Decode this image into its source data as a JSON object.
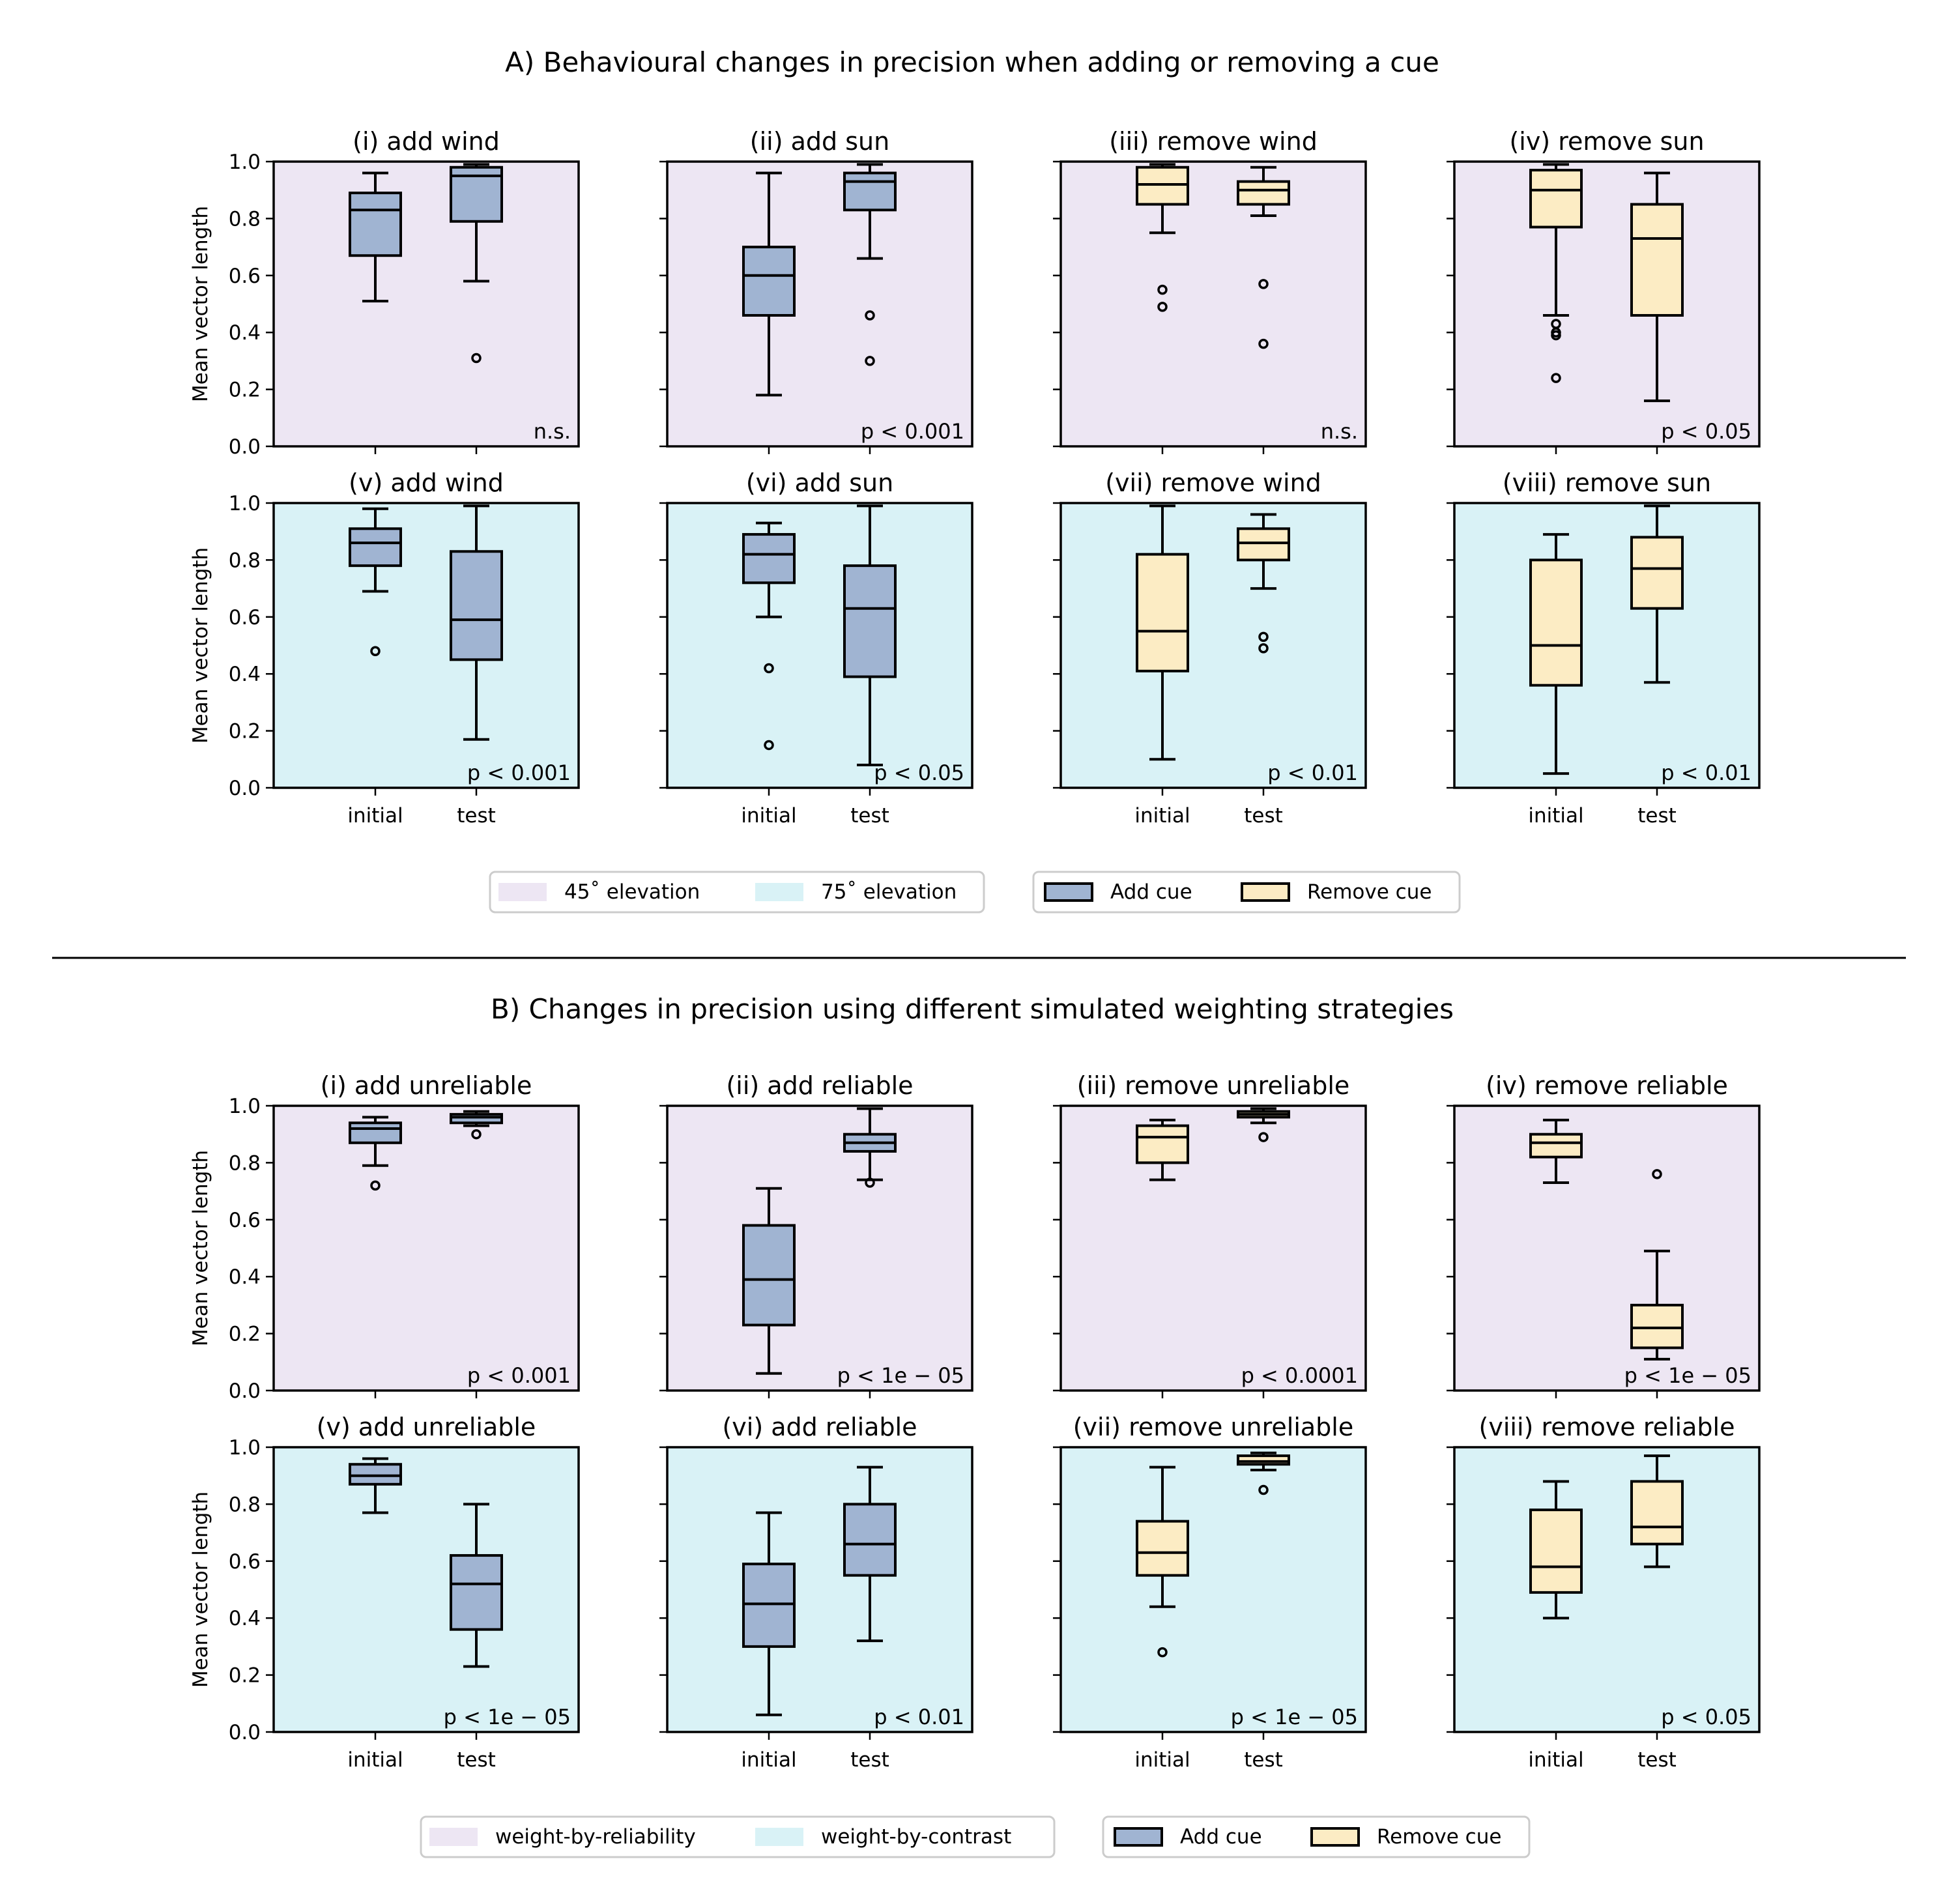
{
  "sections": [
    {
      "title": "A) Behavioural changes in precision when adding or removing a cue",
      "bg_legend": [
        {
          "label": "45˚ elevation",
          "color": "#ede6f3"
        },
        {
          "label": "75˚ elevation",
          "color": "#d9f2f6"
        }
      ],
      "cue_legend": [
        {
          "label": "Add cue",
          "color": "#a0b4d2"
        },
        {
          "label": "Remove cue",
          "color": "#fcecc4"
        }
      ]
    },
    {
      "title": "B) Changes in precision using different simulated weighting strategies",
      "bg_legend": [
        {
          "label": "weight-by-reliability",
          "color": "#ede6f3"
        },
        {
          "label": "weight-by-contrast",
          "color": "#d9f2f6"
        }
      ],
      "cue_legend": [
        {
          "label": "Add cue",
          "color": "#a0b4d2"
        },
        {
          "label": "Remove cue",
          "color": "#fcecc4"
        }
      ]
    }
  ],
  "colors": {
    "add_cue": "#a0b4d2",
    "remove_cue": "#fcecc4",
    "row_bg_top": "#ede6f3",
    "row_bg_bottom": "#d9f2f6"
  },
  "axis": {
    "ylabel": "Mean vector length",
    "yticks": [
      "0.0",
      "0.2",
      "0.4",
      "0.6",
      "0.8",
      "1.0"
    ],
    "xticks": [
      "initial",
      "test"
    ]
  },
  "chart_data": [
    {
      "type": "box",
      "section": "A",
      "title": "(i) add wind",
      "background": "45˚ elevation",
      "cue": "Add cue",
      "p": "n.s.",
      "ylim": [
        0,
        1
      ],
      "boxes": [
        {
          "x": "initial",
          "whislo": 0.51,
          "q1": 0.67,
          "med": 0.83,
          "q3": 0.89,
          "whishi": 0.96,
          "fliers": []
        },
        {
          "x": "test",
          "whislo": 0.58,
          "q1": 0.79,
          "med": 0.95,
          "q3": 0.98,
          "whishi": 0.99,
          "fliers": [
            0.31
          ]
        }
      ]
    },
    {
      "type": "box",
      "section": "A",
      "title": "(ii) add sun",
      "background": "45˚ elevation",
      "cue": "Add cue",
      "p": "p < 0.001",
      "ylim": [
        0,
        1
      ],
      "boxes": [
        {
          "x": "initial",
          "whislo": 0.18,
          "q1": 0.46,
          "med": 0.6,
          "q3": 0.7,
          "whishi": 0.96,
          "fliers": []
        },
        {
          "x": "test",
          "whislo": 0.66,
          "q1": 0.83,
          "med": 0.93,
          "q3": 0.96,
          "whishi": 0.99,
          "fliers": [
            0.46,
            0.3
          ]
        }
      ]
    },
    {
      "type": "box",
      "section": "A",
      "title": "(iii) remove wind",
      "background": "45˚ elevation",
      "cue": "Remove cue",
      "p": "n.s.",
      "ylim": [
        0,
        1
      ],
      "boxes": [
        {
          "x": "initial",
          "whislo": 0.75,
          "q1": 0.85,
          "med": 0.92,
          "q3": 0.98,
          "whishi": 0.99,
          "fliers": [
            0.55,
            0.49
          ]
        },
        {
          "x": "test",
          "whislo": 0.81,
          "q1": 0.85,
          "med": 0.9,
          "q3": 0.93,
          "whishi": 0.98,
          "fliers": [
            0.57,
            0.36
          ]
        }
      ]
    },
    {
      "type": "box",
      "section": "A",
      "title": "(iv) remove sun",
      "background": "45˚ elevation",
      "cue": "Remove cue",
      "p": "p < 0.05",
      "ylim": [
        0,
        1
      ],
      "boxes": [
        {
          "x": "initial",
          "whislo": 0.46,
          "q1": 0.77,
          "med": 0.9,
          "q3": 0.97,
          "whishi": 0.99,
          "fliers": [
            0.43,
            0.4,
            0.39,
            0.24
          ]
        },
        {
          "x": "test",
          "whislo": 0.16,
          "q1": 0.46,
          "med": 0.73,
          "q3": 0.85,
          "whishi": 0.96,
          "fliers": []
        }
      ]
    },
    {
      "type": "box",
      "section": "A",
      "title": "(v) add wind",
      "background": "75˚ elevation",
      "cue": "Add cue",
      "p": "p < 0.001",
      "ylim": [
        0,
        1
      ],
      "boxes": [
        {
          "x": "initial",
          "whislo": 0.69,
          "q1": 0.78,
          "med": 0.86,
          "q3": 0.91,
          "whishi": 0.98,
          "fliers": [
            0.48
          ]
        },
        {
          "x": "test",
          "whislo": 0.17,
          "q1": 0.45,
          "med": 0.59,
          "q3": 0.83,
          "whishi": 0.99,
          "fliers": []
        }
      ]
    },
    {
      "type": "box",
      "section": "A",
      "title": "(vi) add sun",
      "background": "75˚ elevation",
      "cue": "Add cue",
      "p": "p < 0.05",
      "ylim": [
        0,
        1
      ],
      "boxes": [
        {
          "x": "initial",
          "whislo": 0.6,
          "q1": 0.72,
          "med": 0.82,
          "q3": 0.89,
          "whishi": 0.93,
          "fliers": [
            0.42,
            0.15
          ]
        },
        {
          "x": "test",
          "whislo": 0.08,
          "q1": 0.39,
          "med": 0.63,
          "q3": 0.78,
          "whishi": 0.99,
          "fliers": []
        }
      ]
    },
    {
      "type": "box",
      "section": "A",
      "title": "(vii) remove wind",
      "background": "75˚ elevation",
      "cue": "Remove cue",
      "p": "p < 0.01",
      "ylim": [
        0,
        1
      ],
      "boxes": [
        {
          "x": "initial",
          "whislo": 0.1,
          "q1": 0.41,
          "med": 0.55,
          "q3": 0.82,
          "whishi": 0.99,
          "fliers": []
        },
        {
          "x": "test",
          "whislo": 0.7,
          "q1": 0.8,
          "med": 0.86,
          "q3": 0.91,
          "whishi": 0.96,
          "fliers": [
            0.53,
            0.49
          ]
        }
      ]
    },
    {
      "type": "box",
      "section": "A",
      "title": "(viii) remove sun",
      "background": "75˚ elevation",
      "cue": "Remove cue",
      "p": "p < 0.01",
      "ylim": [
        0,
        1
      ],
      "boxes": [
        {
          "x": "initial",
          "whislo": 0.05,
          "q1": 0.36,
          "med": 0.5,
          "q3": 0.8,
          "whishi": 0.89,
          "fliers": []
        },
        {
          "x": "test",
          "whislo": 0.37,
          "q1": 0.63,
          "med": 0.77,
          "q3": 0.88,
          "whishi": 0.99,
          "fliers": []
        }
      ]
    },
    {
      "type": "box",
      "section": "B",
      "title": "(i) add unreliable",
      "background": "weight-by-reliability",
      "cue": "Add cue",
      "p": "p < 0.001",
      "ylim": [
        0,
        1
      ],
      "boxes": [
        {
          "x": "initial",
          "whislo": 0.79,
          "q1": 0.87,
          "med": 0.92,
          "q3": 0.94,
          "whishi": 0.96,
          "fliers": [
            0.72
          ]
        },
        {
          "x": "test",
          "whislo": 0.93,
          "q1": 0.94,
          "med": 0.96,
          "q3": 0.97,
          "whishi": 0.98,
          "fliers": [
            0.9
          ]
        }
      ]
    },
    {
      "type": "box",
      "section": "B",
      "title": "(ii) add reliable",
      "background": "weight-by-reliability",
      "cue": "Add cue",
      "p": "p < 1e − 05",
      "ylim": [
        0,
        1
      ],
      "boxes": [
        {
          "x": "initial",
          "whislo": 0.06,
          "q1": 0.23,
          "med": 0.39,
          "q3": 0.58,
          "whishi": 0.71,
          "fliers": []
        },
        {
          "x": "test",
          "whislo": 0.74,
          "q1": 0.84,
          "med": 0.87,
          "q3": 0.9,
          "whishi": 0.99,
          "fliers": [
            0.73
          ]
        }
      ]
    },
    {
      "type": "box",
      "section": "B",
      "title": "(iii) remove unreliable",
      "background": "weight-by-reliability",
      "cue": "Remove cue",
      "p": "p < 0.0001",
      "ylim": [
        0,
        1
      ],
      "boxes": [
        {
          "x": "initial",
          "whislo": 0.74,
          "q1": 0.8,
          "med": 0.89,
          "q3": 0.93,
          "whishi": 0.95,
          "fliers": []
        },
        {
          "x": "test",
          "whislo": 0.94,
          "q1": 0.96,
          "med": 0.97,
          "q3": 0.98,
          "whishi": 0.99,
          "fliers": [
            0.89
          ]
        }
      ]
    },
    {
      "type": "box",
      "section": "B",
      "title": "(iv) remove reliable",
      "background": "weight-by-reliability",
      "cue": "Remove cue",
      "p": "p < 1e − 05",
      "ylim": [
        0,
        1
      ],
      "boxes": [
        {
          "x": "initial",
          "whislo": 0.73,
          "q1": 0.82,
          "med": 0.87,
          "q3": 0.9,
          "whishi": 0.95,
          "fliers": []
        },
        {
          "x": "test",
          "whislo": 0.11,
          "q1": 0.15,
          "med": 0.22,
          "q3": 0.3,
          "whishi": 0.49,
          "fliers": [
            0.76
          ]
        }
      ]
    },
    {
      "type": "box",
      "section": "B",
      "title": "(v) add unreliable",
      "background": "weight-by-contrast",
      "cue": "Add cue",
      "p": "p < 1e − 05",
      "ylim": [
        0,
        1
      ],
      "boxes": [
        {
          "x": "initial",
          "whislo": 0.77,
          "q1": 0.87,
          "med": 0.9,
          "q3": 0.94,
          "whishi": 0.96,
          "fliers": []
        },
        {
          "x": "test",
          "whislo": 0.23,
          "q1": 0.36,
          "med": 0.52,
          "q3": 0.62,
          "whishi": 0.8,
          "fliers": []
        }
      ]
    },
    {
      "type": "box",
      "section": "B",
      "title": "(vi) add reliable",
      "background": "weight-by-contrast",
      "cue": "Add cue",
      "p": "p < 0.01",
      "ylim": [
        0,
        1
      ],
      "boxes": [
        {
          "x": "initial",
          "whislo": 0.06,
          "q1": 0.3,
          "med": 0.45,
          "q3": 0.59,
          "whishi": 0.77,
          "fliers": []
        },
        {
          "x": "test",
          "whislo": 0.32,
          "q1": 0.55,
          "med": 0.66,
          "q3": 0.8,
          "whishi": 0.93,
          "fliers": []
        }
      ]
    },
    {
      "type": "box",
      "section": "B",
      "title": "(vii) remove unreliable",
      "background": "weight-by-contrast",
      "cue": "Remove cue",
      "p": "p < 1e − 05",
      "ylim": [
        0,
        1
      ],
      "boxes": [
        {
          "x": "initial",
          "whislo": 0.44,
          "q1": 0.55,
          "med": 0.63,
          "q3": 0.74,
          "whishi": 0.93,
          "fliers": [
            0.28
          ]
        },
        {
          "x": "test",
          "whislo": 0.92,
          "q1": 0.94,
          "med": 0.95,
          "q3": 0.97,
          "whishi": 0.98,
          "fliers": [
            0.85
          ]
        }
      ]
    },
    {
      "type": "box",
      "section": "B",
      "title": "(viii) remove reliable",
      "background": "weight-by-contrast",
      "cue": "Remove cue",
      "p": "p < 0.05",
      "ylim": [
        0,
        1
      ],
      "boxes": [
        {
          "x": "initial",
          "whislo": 0.4,
          "q1": 0.49,
          "med": 0.58,
          "q3": 0.78,
          "whishi": 0.88,
          "fliers": []
        },
        {
          "x": "test",
          "whislo": 0.58,
          "q1": 0.66,
          "med": 0.72,
          "q3": 0.88,
          "whishi": 0.97,
          "fliers": []
        }
      ]
    }
  ]
}
